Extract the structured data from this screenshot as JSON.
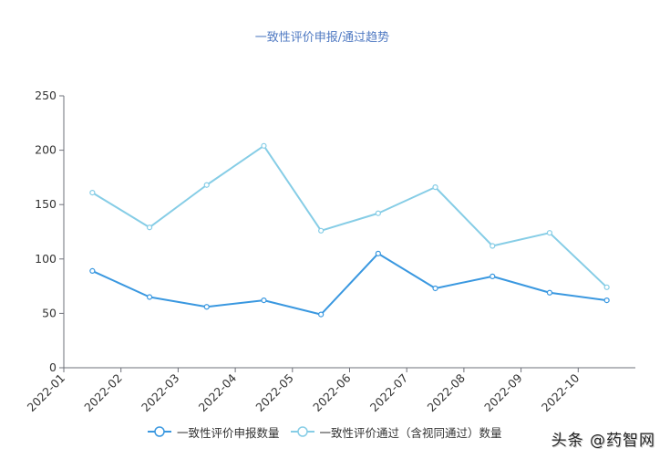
{
  "title": "一致性评价申报/通过趋势",
  "legend": [
    {
      "label": "一致性评价申报数量",
      "color": "#3a98e0"
    },
    {
      "label": "一致性评价通过（含视同通过）数量",
      "color": "#86cde6"
    }
  ],
  "watermark": "头条 @药智网",
  "chart_data": {
    "type": "line",
    "title": "一致性评价申报/通过趋势",
    "xlabel": "",
    "ylabel": "",
    "categories": [
      "2022-01",
      "2022-02",
      "2022-03",
      "2022-04",
      "2022-05",
      "2022-06",
      "2022-07",
      "2022-08",
      "2022-09",
      "2022-10"
    ],
    "series": [
      {
        "name": "一致性评价申报数量",
        "color": "#3a98e0",
        "values": [
          89,
          65,
          56,
          62,
          49,
          105,
          73,
          84,
          69,
          62
        ]
      },
      {
        "name": "一致性评价通过（含视同通过）数量",
        "color": "#86cde6",
        "values": [
          161,
          129,
          168,
          204,
          126,
          142,
          166,
          112,
          124,
          74
        ]
      }
    ],
    "ylim": [
      0,
      250
    ],
    "yticks": [
      0,
      50,
      100,
      150,
      200,
      250
    ],
    "grid": false,
    "legend_position": "bottom",
    "x_tick_rotation": -45
  }
}
